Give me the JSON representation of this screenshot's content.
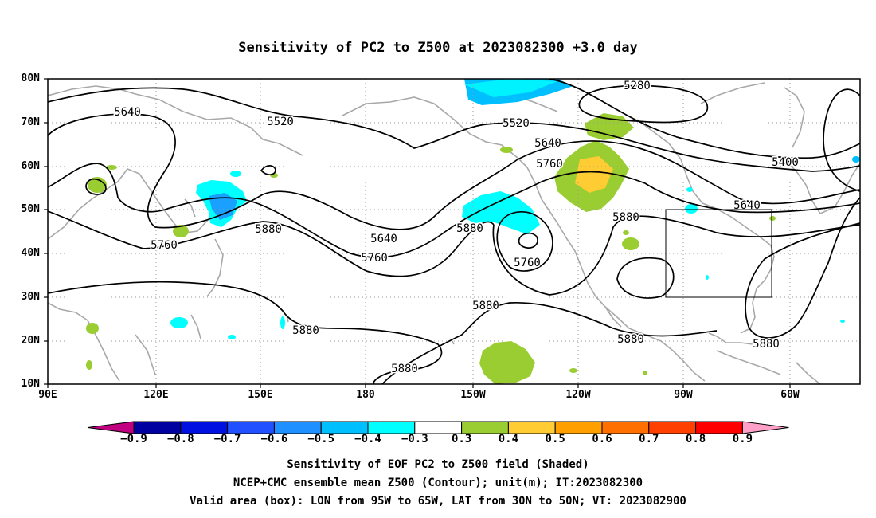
{
  "title": "Sensitivity of PC2 to Z500 at 2023082300 +3.0 day",
  "lat_labels": [
    "80N",
    "70N",
    "60N",
    "50N",
    "40N",
    "30N",
    "20N",
    "10N"
  ],
  "lon_labels": [
    "90E",
    "120E",
    "150E",
    "180",
    "150W",
    "120W",
    "90W",
    "60W"
  ],
  "contour_labels": [
    "5280",
    "5400",
    "5520",
    "5520",
    "5640",
    "5640",
    "5640",
    "5640",
    "5760",
    "5760",
    "5760",
    "5760",
    "5880",
    "5880",
    "5880",
    "5880",
    "5880",
    "5880",
    "5880"
  ],
  "colorbar": {
    "colors": [
      "#c00080",
      "#0000a0",
      "#0010e0",
      "#2050ff",
      "#1e90ff",
      "#00bfff",
      "#00ffff",
      "#ffffff",
      "#9acd32",
      "#ffcc33",
      "#ffa000",
      "#ff7000",
      "#ff4000",
      "#ff0000",
      "#ffa0c8"
    ],
    "labels": [
      "−0.9",
      "−0.8",
      "−0.7",
      "−0.6",
      "−0.5",
      "−0.4",
      "−0.3",
      "0.3",
      "0.4",
      "0.5",
      "0.6",
      "0.7",
      "0.8",
      "0.9"
    ]
  },
  "captions": [
    "Sensitivity of EOF PC2 to Z500 field (Shaded)",
    "NCEP+CMC ensemble mean Z500 (Contour); unit(m); IT:2023082300",
    "Valid area (box): LON from 95W to 65W, LAT from 30N to 50N; VT: 2023082900"
  ]
}
